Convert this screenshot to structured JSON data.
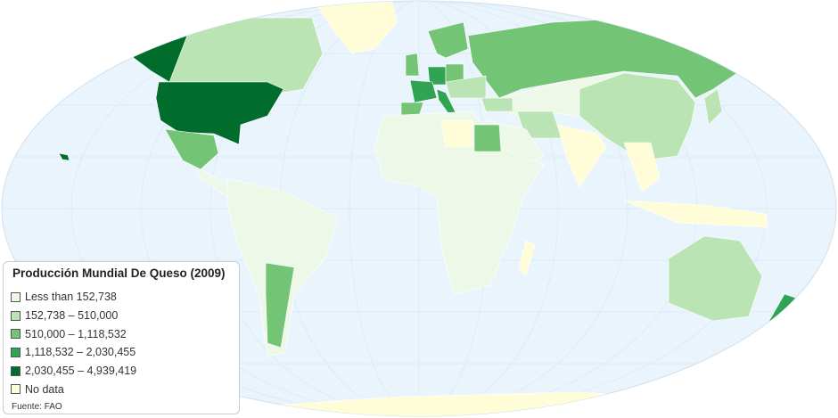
{
  "legend": {
    "title": "Producción Mundial De Queso (2009)",
    "items": [
      {
        "label": "Less than 152,738",
        "color": "#edf8e9"
      },
      {
        "label": "152,738 – 510,000",
        "color": "#bae4b3"
      },
      {
        "label": "510,000 – 1,118,532",
        "color": "#74c476"
      },
      {
        "label": "1,118,532 – 2,030,455",
        "color": "#31a354"
      },
      {
        "label": "2,030,455 – 4,939,419",
        "color": "#006d2c"
      },
      {
        "label": "No data",
        "color": "#fffdd8"
      }
    ],
    "source": "Fuente: FAO"
  },
  "colors": {
    "ocean": "#eaf4fc",
    "grid": "#d7e8f4"
  }
}
